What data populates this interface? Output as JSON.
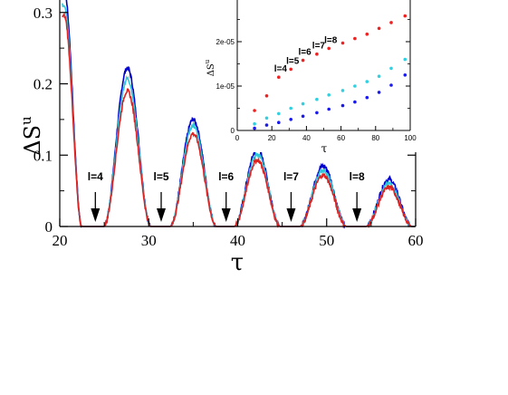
{
  "chart_data": [
    {
      "type": "line",
      "xlabel": "τ",
      "ylabel": "ΔS",
      "ylabel_sup": "u",
      "xlim": [
        20,
        60
      ],
      "ylim": [
        0,
        0.32
      ],
      "xticks": [
        20,
        30,
        40,
        50,
        60
      ],
      "yticks": [
        0,
        0.1,
        0.2,
        0.3
      ],
      "xtick_labels": [
        "20",
        "30",
        "40",
        "50",
        "60"
      ],
      "ytick_labels": [
        "0",
        "0.1",
        "0.2",
        "0.3"
      ],
      "series": [
        {
          "color": "#0000cc",
          "peaks": [
            {
              "x": 27.6,
              "y": 0.222
            },
            {
              "x": 35.0,
              "y": 0.15
            },
            {
              "x": 42.2,
              "y": 0.108
            },
            {
              "x": 49.6,
              "y": 0.085
            },
            {
              "x": 57.0,
              "y": 0.066
            }
          ],
          "start_y": 0.33
        },
        {
          "color": "#30c8d8",
          "peaks": [
            {
              "x": 27.6,
              "y": 0.207
            },
            {
              "x": 35.0,
              "y": 0.142
            },
            {
              "x": 42.2,
              "y": 0.101
            },
            {
              "x": 49.6,
              "y": 0.079
            },
            {
              "x": 57.0,
              "y": 0.06
            }
          ],
          "start_y": 0.31
        },
        {
          "color": "#dd2222",
          "peaks": [
            {
              "x": 27.6,
              "y": 0.19
            },
            {
              "x": 35.0,
              "y": 0.13
            },
            {
              "x": 42.2,
              "y": 0.093
            },
            {
              "x": 49.6,
              "y": 0.072
            },
            {
              "x": 57.0,
              "y": 0.055
            }
          ],
          "start_y": 0.295
        }
      ],
      "minima_x": [
        24.0,
        31.4,
        38.7,
        46.0,
        53.4
      ],
      "annotations": [
        {
          "text": "l=4",
          "x": 24.0
        },
        {
          "text": "l=5",
          "x": 31.4
        },
        {
          "text": "l=6",
          "x": 38.7
        },
        {
          "text": "l=7",
          "x": 46.0
        },
        {
          "text": "l=8",
          "x": 53.4
        }
      ]
    },
    {
      "type": "scatter",
      "xlabel": "τ",
      "ylabel": "ΔS",
      "ylabel_sup": "u",
      "xlim": [
        0,
        100
      ],
      "ylim": [
        0,
        3e-05
      ],
      "xticks": [
        0,
        20,
        40,
        60,
        80,
        100
      ],
      "xtick_labels": [
        "0",
        "20",
        "40",
        "60",
        "80",
        "100"
      ],
      "yticks": [
        0,
        1e-05,
        2e-05
      ],
      "ytick_labels": [
        "0",
        "1e-05",
        "2e-05"
      ],
      "series": [
        {
          "color": "#ee2222",
          "x": [
            10,
            17,
            24,
            31,
            38,
            46,
            53,
            61,
            68,
            75,
            82,
            89,
            97
          ],
          "y": [
            4.5e-06,
            7.8e-06,
            1.2e-05,
            1.38e-05,
            1.58e-05,
            1.72e-05,
            1.85e-05,
            1.97e-05,
            2.07e-05,
            2.17e-05,
            2.3e-05,
            2.43e-05,
            2.58e-05
          ]
        },
        {
          "color": "#30d0e0",
          "x": [
            10,
            17,
            24,
            31,
            38,
            46,
            53,
            61,
            68,
            75,
            82,
            89,
            97
          ],
          "y": [
            1.5e-06,
            2.8e-06,
            3.8e-06,
            5e-06,
            6e-06,
            7e-06,
            8e-06,
            9e-06,
            1e-05,
            1.1e-05,
            1.22e-05,
            1.4e-05,
            1.6e-05
          ]
        },
        {
          "color": "#1a1aee",
          "x": [
            10,
            17,
            24,
            31,
            38,
            46,
            53,
            61,
            68,
            75,
            82,
            89,
            97
          ],
          "y": [
            5e-07,
            1.2e-06,
            1.8e-06,
            2.5e-06,
            3.2e-06,
            4e-06,
            4.8e-06,
            5.6e-06,
            6.4e-06,
            7.4e-06,
            8.6e-06,
            1.02e-05,
            1.25e-05
          ]
        }
      ],
      "annotations": [
        {
          "text": "l=4",
          "x": 24,
          "y": 1.2e-05
        },
        {
          "text": "l=5",
          "x": 31,
          "y": 1.38e-05
        },
        {
          "text": "l=6",
          "x": 38,
          "y": 1.58e-05
        },
        {
          "text": "l=7",
          "x": 46,
          "y": 1.72e-05
        },
        {
          "text": "l=8",
          "x": 53,
          "y": 1.85e-05
        }
      ]
    }
  ]
}
